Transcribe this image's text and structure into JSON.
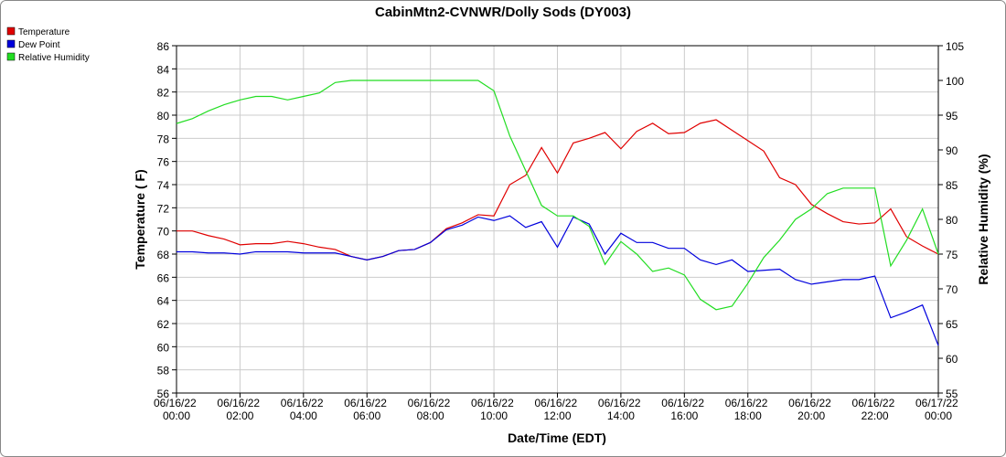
{
  "chart_data": {
    "type": "line",
    "title": "CabinMtn2-CVNWR/Dolly Sods (DY003)",
    "x_label": "Date/Time (EDT)",
    "y_label": "Temperature ( F)",
    "y2_label": "Relative Humidity (%)",
    "x": [
      0,
      0.5,
      1,
      1.5,
      2,
      2.5,
      3,
      3.5,
      4,
      4.5,
      5,
      5.5,
      6,
      6.5,
      7,
      7.5,
      8,
      8.5,
      9,
      9.5,
      10,
      10.5,
      11,
      11.5,
      12,
      12.5,
      13,
      13.5,
      14,
      14.5,
      15,
      15.5,
      16,
      16.5,
      17,
      17.5,
      18,
      18.5,
      19,
      19.5,
      20,
      20.5,
      21,
      21.5,
      22,
      22.5,
      23,
      23.5,
      24
    ],
    "series": [
      {
        "name": "Temperature",
        "color": "#e00000",
        "values": [
          70,
          70,
          69.6,
          69.3,
          68.8,
          68.9,
          68.9,
          69.1,
          68.9,
          68.6,
          68.4,
          67.8,
          67.5,
          67.8,
          68.3,
          68.4,
          69,
          70.2,
          70.7,
          71.4,
          71.3,
          74,
          74.8,
          77.2,
          75,
          77.6,
          78,
          78.5,
          77.1,
          78.6,
          79.3,
          78.4,
          78.5,
          79.3,
          79.6,
          78.7,
          77.8,
          76.9,
          74.6,
          74,
          72.3,
          71.5,
          70.8,
          70.6,
          70.7,
          71.9,
          69.5,
          68.7,
          68
        ]
      },
      {
        "name": "Dew Point",
        "color": "#0000dd",
        "values": [
          68.2,
          68.2,
          68.1,
          68.1,
          68,
          68.2,
          68.2,
          68.2,
          68.1,
          68.1,
          68.1,
          67.8,
          67.5,
          67.8,
          68.3,
          68.4,
          69,
          70.1,
          70.5,
          71.2,
          70.9,
          71.3,
          70.3,
          70.8,
          68.6,
          71.2,
          70.6,
          68,
          69.8,
          69,
          69,
          68.5,
          68.5,
          67.5,
          67.1,
          67.5,
          66.5,
          66.6,
          66.7,
          65.8,
          65.4,
          65.6,
          65.8,
          65.8,
          66.1,
          62.5,
          63,
          63.6,
          60.1
        ]
      },
      {
        "name": "Relative Humidity",
        "color": "#22dd22",
        "axis": "y2",
        "values": [
          93.8,
          94.5,
          95.6,
          96.5,
          97.2,
          97.7,
          97.7,
          97.2,
          97.7,
          98.2,
          99.7,
          100,
          100,
          100,
          100,
          100,
          100,
          100,
          100,
          100,
          98.5,
          92,
          87,
          82,
          80.5,
          80.5,
          79,
          73.5,
          76.8,
          75,
          72.5,
          73,
          72,
          68.5,
          67,
          67.5,
          70.8,
          74.5,
          77,
          80,
          81.5,
          83.7,
          84.5,
          84.5,
          84.5,
          73.3,
          77,
          81.5,
          75
        ]
      }
    ],
    "xlim": [
      0,
      24
    ],
    "xticks": [
      {
        "value": 0,
        "label": "06/16/22 00:00"
      },
      {
        "value": 2,
        "label": "06/16/22 02:00"
      },
      {
        "value": 4,
        "label": "06/16/22 04:00"
      },
      {
        "value": 6,
        "label": "06/16/22 06:00"
      },
      {
        "value": 8,
        "label": "06/16/22 08:00"
      },
      {
        "value": 10,
        "label": "06/16/22 10:00"
      },
      {
        "value": 12,
        "label": "06/16/22 12:00"
      },
      {
        "value": 14,
        "label": "06/16/22 14:00"
      },
      {
        "value": 16,
        "label": "06/16/22 16:00"
      },
      {
        "value": 18,
        "label": "06/16/22 18:00"
      },
      {
        "value": 20,
        "label": "06/16/22 20:00"
      },
      {
        "value": 22,
        "label": "06/16/22 22:00"
      },
      {
        "value": 24,
        "label": "06/17/22 00:00"
      }
    ],
    "ylim": [
      56,
      86
    ],
    "yticks": [
      56,
      58,
      60,
      62,
      64,
      66,
      68,
      70,
      72,
      74,
      76,
      78,
      80,
      82,
      84,
      86
    ],
    "y2lim": [
      55,
      105
    ],
    "y2ticks": [
      55,
      60,
      65,
      70,
      75,
      80,
      85,
      90,
      95,
      100,
      105
    ],
    "grid": true,
    "legend": "top-left"
  }
}
